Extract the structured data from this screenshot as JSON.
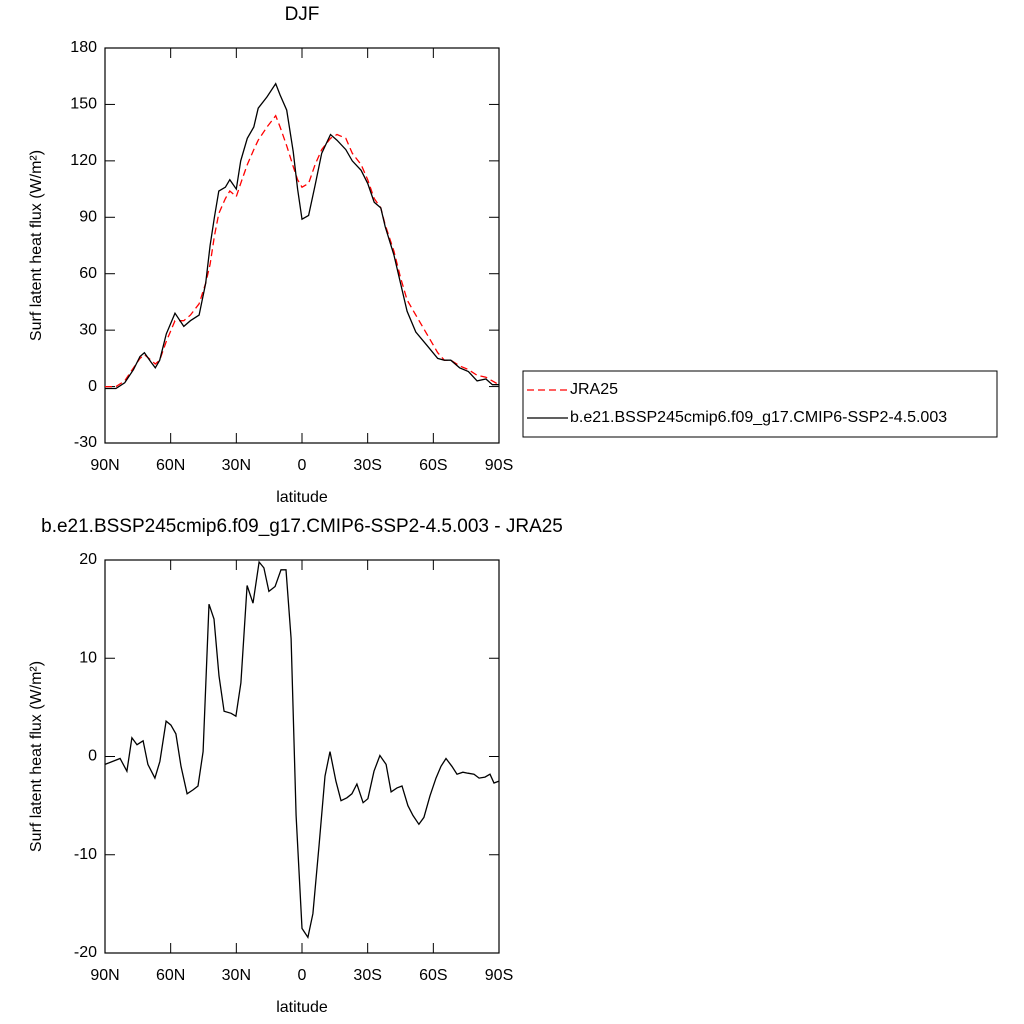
{
  "chart_data": [
    {
      "type": "line",
      "title": "DJF",
      "xlabel": "latitude",
      "ylabel": "Surf latent heat flux (W/m²)",
      "xlim": [
        90,
        -90
      ],
      "xticks": [
        {
          "value": 90,
          "label": "90N"
        },
        {
          "value": 60,
          "label": "60N"
        },
        {
          "value": 30,
          "label": "30N"
        },
        0,
        {
          "value": -30,
          "label": "30S"
        },
        {
          "value": -60,
          "label": "60S"
        },
        {
          "value": -90,
          "label": "90S"
        }
      ],
      "ylim": [
        -30,
        180
      ],
      "yticks": [
        -30,
        0,
        30,
        60,
        90,
        120,
        150,
        180
      ],
      "legend": "right",
      "x": [
        90,
        85,
        81,
        77,
        74,
        72,
        69,
        67,
        65,
        62,
        58,
        54,
        51,
        47,
        44,
        42,
        40,
        38,
        35,
        33,
        30,
        28,
        25,
        22,
        20,
        16,
        12,
        10,
        7,
        4,
        2,
        0,
        -3,
        -6,
        -9,
        -13,
        -16,
        -20,
        -23,
        -27,
        -30,
        -33,
        -36,
        -38,
        -42,
        -45,
        -48,
        -52,
        -57,
        -62,
        -65,
        -68,
        -72,
        -76,
        -80,
        -84,
        -87,
        -90
      ],
      "series": [
        {
          "name": "JRA25",
          "color": "#ff0000",
          "dash": true,
          "values": [
            0,
            0,
            3,
            10,
            15,
            17,
            14,
            12,
            14,
            24,
            35,
            35,
            38,
            44,
            55,
            65,
            80,
            92,
            100,
            104,
            101,
            108,
            118,
            126,
            131,
            138,
            144,
            138,
            128,
            117,
            110,
            106,
            108,
            118,
            126,
            132,
            134,
            132,
            124,
            118,
            110,
            100,
            95,
            86,
            72,
            58,
            46,
            38,
            28,
            18,
            14,
            14,
            11,
            9,
            6,
            5,
            3,
            1
          ]
        },
        {
          "name": "b.e21.BSSP245cmip6.f09_g17.CMIP6-SSP2-4.5.003",
          "color": "#000000",
          "dash": false,
          "values": [
            -1,
            -1,
            2,
            9,
            16,
            18,
            13,
            10,
            14,
            28,
            39,
            32,
            35,
            38,
            55,
            75,
            90,
            104,
            106,
            110,
            105,
            120,
            132,
            138,
            148,
            154,
            161,
            155,
            147,
            125,
            105,
            89,
            91,
            107,
            124,
            134,
            131,
            126,
            120,
            115,
            108,
            98,
            95,
            85,
            70,
            55,
            40,
            29,
            22,
            15,
            14,
            14,
            10,
            8,
            3,
            4,
            1,
            1
          ]
        }
      ]
    },
    {
      "type": "line",
      "title": "b.e21.BSSP245cmip6.f09_g17.CMIP6-SSP2-4.5.003 - JRA25",
      "xlabel": "latitude",
      "ylabel": "Surf latent heat flux (W/m²)",
      "xlim": [
        90,
        -90
      ],
      "xticks": [
        {
          "value": 90,
          "label": "90N"
        },
        {
          "value": 60,
          "label": "60N"
        },
        {
          "value": 30,
          "label": "30N"
        },
        0,
        {
          "value": -30,
          "label": "30S"
        },
        {
          "value": -60,
          "label": "60S"
        },
        {
          "value": -90,
          "label": "90S"
        }
      ],
      "ylim": [
        -20,
        20
      ],
      "yticks": [
        -20,
        -10,
        0,
        10,
        20
      ],
      "color": "#000000",
      "x": [
        90,
        83.1,
        80,
        77.7,
        75.4,
        72.6,
        70.4,
        67.2,
        64.9,
        62.1,
        59.9,
        57.6,
        55.3,
        52.5,
        49.8,
        47.5,
        45.2,
        42.5,
        40.2,
        37.9,
        35.6,
        32.4,
        30.2,
        27.9,
        25.1,
        22.4,
        19.6,
        17.4,
        15.1,
        12.3,
        9.6,
        7.3,
        5,
        2.7,
        0,
        -2.7,
        -5,
        -7.8,
        -10.5,
        -12.8,
        -15.5,
        -17.8,
        -20.5,
        -22.8,
        -25.1,
        -27.9,
        -30.1,
        -32.9,
        -35.6,
        -38.4,
        -40.7,
        -43.4,
        -45.7,
        -48.4,
        -50.7,
        -53.4,
        -55.7,
        -58.5,
        -61.2,
        -63.5,
        -65.8,
        -68.5,
        -70.8,
        -73.5,
        -75.8,
        -78.6,
        -80.9,
        -83.6,
        -85.9,
        -87.7,
        -90
      ],
      "values": [
        -0.8,
        -0.2,
        -1.5,
        1.9,
        1.2,
        1.6,
        -0.8,
        -2.2,
        -0.5,
        3.6,
        3.2,
        2.3,
        -1,
        -3.8,
        -3.4,
        -3,
        0.5,
        15.5,
        14,
        8.2,
        4.6,
        4.4,
        4.1,
        7.5,
        17.4,
        15.6,
        19.8,
        19.2,
        16.8,
        17.3,
        19,
        19,
        12,
        -6,
        -17.5,
        -18.4,
        -16,
        -9,
        -2,
        0.5,
        -2.5,
        -4.5,
        -4.2,
        -3.8,
        -2.8,
        -4.7,
        -4.3,
        -1.5,
        0.1,
        -0.8,
        -3.6,
        -3.2,
        -3,
        -5,
        -6,
        -6.9,
        -6.2,
        -4,
        -2.2,
        -1,
        -0.2,
        -1,
        -1.8,
        -1.6,
        -1.7,
        -1.8,
        -2.2,
        -2.1,
        -1.8,
        -2.7,
        -2.5
      ]
    }
  ]
}
